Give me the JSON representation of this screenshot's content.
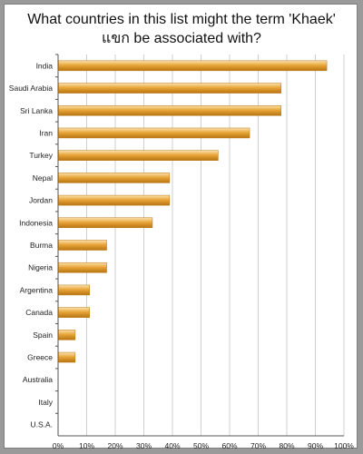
{
  "chart_data": {
    "type": "bar",
    "orientation": "horizontal",
    "title_line1": "What countries in this list might the term 'Khaek'",
    "title_line2": "แขก be associated with?",
    "categories": [
      "India",
      "Saudi Arabia",
      "Sri Lanka",
      "Iran",
      "Turkey",
      "Nepal",
      "Jordan",
      "Indonesia",
      "Burma",
      "Nigeria",
      "Argentina",
      "Canada",
      "Spain",
      "Greece",
      "Australia",
      "Italy",
      "U.S.A."
    ],
    "values": [
      94,
      78,
      78,
      67,
      56,
      39,
      39,
      33,
      17,
      17,
      11,
      11,
      6,
      6,
      0,
      0,
      0
    ],
    "xlim": [
      0,
      100
    ],
    "xticks": [
      "0%",
      "10%",
      "20%",
      "30%",
      "40%",
      "50%",
      "60%",
      "70%",
      "80%",
      "90%",
      "100%"
    ],
    "grid": true,
    "bar_color": "#e8a63a",
    "bar_highlight": "#fbe3b0",
    "bar_shadow": "#b87410"
  }
}
